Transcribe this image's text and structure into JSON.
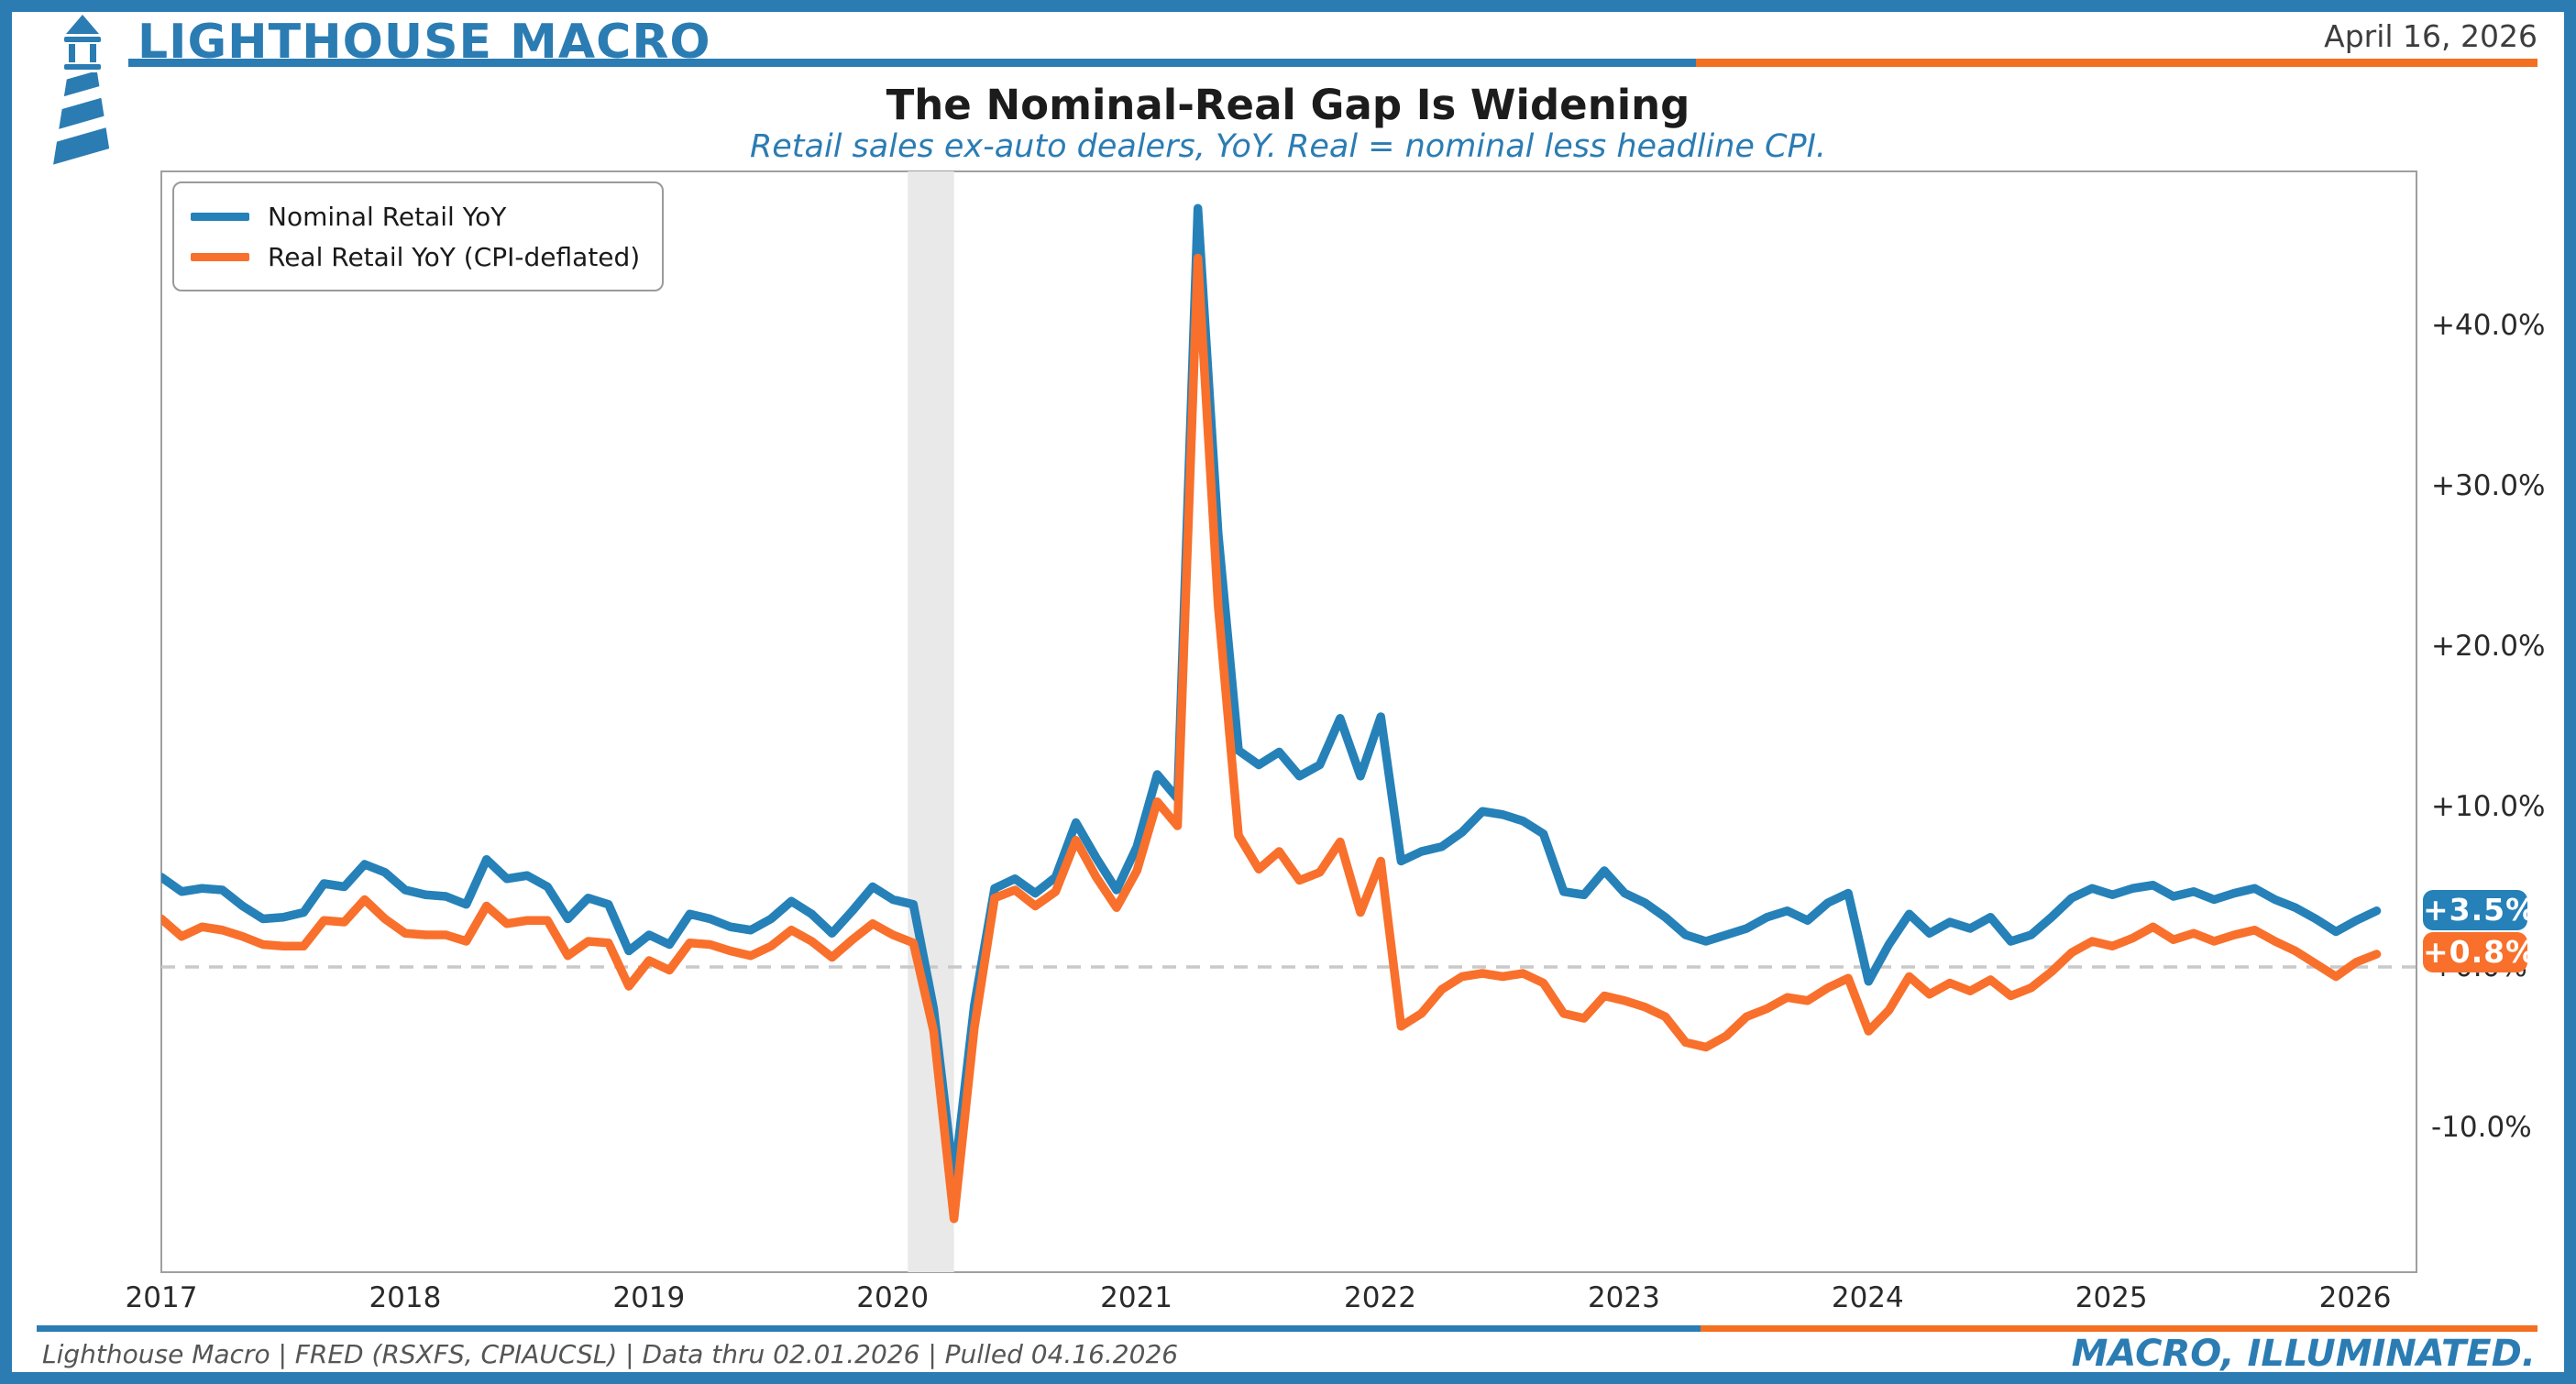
{
  "header": {
    "brand": "LIGHTHOUSE MACRO",
    "date": "April 16, 2026"
  },
  "title": "The Nominal-Real Gap Is Widening",
  "subtitle": "Retail sales ex-auto dealers, YoY. Real = nominal less headline CPI.",
  "legend": {
    "items": [
      {
        "label": "Nominal Retail YoY"
      },
      {
        "label": "Real Retail YoY (CPI-deflated)"
      }
    ]
  },
  "badges": {
    "nominal": "+3.5%",
    "real": "+0.8%"
  },
  "footer": {
    "source": "Lighthouse Macro | FRED (RSXFS, CPIAUCSL) | Data thru 02.01.2026 | Pulled 04.16.2026",
    "tagline": "MACRO, ILLUMINATED."
  },
  "colors": {
    "chart_blue": "#2581b8",
    "chart_orange": "#f8702b",
    "brand_blue": "#2b7cb3",
    "accent_orange": "#f36f21",
    "recession_band": "#e9e9e9",
    "zero_dash": "#c9c9c9"
  },
  "chart_data": {
    "type": "line",
    "title": "The Nominal-Real Gap Is Widening",
    "subtitle": "Retail sales ex-auto dealers, YoY. Real = nominal less headline CPI.",
    "frequency": "monthly",
    "x_start": "2017-01",
    "x_end": "2026-02",
    "x_tick_labels": [
      "2017",
      "2018",
      "2019",
      "2020",
      "2021",
      "2022",
      "2023",
      "2024",
      "2025",
      "2026"
    ],
    "y_tick_labels": [
      "+40.0%",
      "+30.0%",
      "+20.0%",
      "+10.0%",
      "+0.0%",
      "-10.0%"
    ],
    "y_tick_values": [
      40,
      30,
      20,
      10,
      0,
      -10
    ],
    "ylim": [
      -19.2,
      49.7
    ],
    "grid": false,
    "zero_line_dashed": true,
    "legend_position": "upper-left",
    "recession_band": {
      "from": "2020-02",
      "to": "2020-04"
    },
    "end_labels": {
      "nominal": "+3.5%",
      "real": "+0.8%"
    },
    "series": [
      {
        "name": "Nominal Retail YoY",
        "color": "#2581b8",
        "values": [
          5.6,
          4.7,
          4.9,
          4.8,
          3.8,
          3.0,
          3.1,
          3.4,
          5.2,
          5.0,
          6.4,
          5.9,
          4.8,
          4.5,
          4.4,
          3.9,
          6.7,
          5.5,
          5.7,
          5.0,
          3.0,
          4.3,
          3.9,
          1.0,
          2.0,
          1.4,
          3.3,
          3.0,
          2.5,
          2.3,
          3.0,
          4.1,
          3.3,
          2.1,
          3.5,
          5.0,
          4.2,
          3.9,
          -2.6,
          -13.3,
          -2.4,
          4.9,
          5.5,
          4.6,
          5.6,
          9.0,
          6.8,
          4.8,
          7.5,
          12.0,
          10.5,
          47.3,
          27.0,
          13.5,
          12.6,
          13.4,
          11.9,
          12.6,
          15.5,
          11.9,
          15.6,
          6.6,
          7.2,
          7.5,
          8.4,
          9.7,
          9.5,
          9.1,
          8.3,
          4.7,
          4.5,
          6.0,
          4.6,
          4.0,
          3.1,
          2.0,
          1.6,
          2.0,
          2.4,
          3.1,
          3.5,
          2.9,
          4.0,
          4.6,
          -0.9,
          1.4,
          3.3,
          2.1,
          2.8,
          2.4,
          3.1,
          1.6,
          2.0,
          3.1,
          4.3,
          4.9,
          4.5,
          4.9,
          5.1,
          4.4,
          4.7,
          4.2,
          4.6,
          4.9,
          4.2,
          3.7,
          3.0,
          2.2,
          2.9,
          3.5
        ]
      },
      {
        "name": "Real Retail YoY (CPI-deflated)",
        "color": "#f8702b",
        "values": [
          3.0,
          1.9,
          2.5,
          2.3,
          1.9,
          1.4,
          1.3,
          1.3,
          2.9,
          2.8,
          4.2,
          3.0,
          2.1,
          2.0,
          2.0,
          1.6,
          3.8,
          2.7,
          2.9,
          2.9,
          0.7,
          1.6,
          1.5,
          -1.2,
          0.4,
          -0.2,
          1.5,
          1.4,
          1.0,
          0.7,
          1.3,
          2.3,
          1.6,
          0.6,
          1.7,
          2.7,
          2.0,
          1.5,
          -4.0,
          -15.7,
          -3.8,
          4.3,
          4.8,
          3.8,
          4.7,
          7.9,
          5.6,
          3.7,
          6.0,
          10.3,
          8.8,
          44.2,
          22.5,
          8.2,
          6.1,
          7.2,
          5.4,
          5.9,
          7.8,
          3.4,
          6.6,
          -3.7,
          -2.9,
          -1.4,
          -0.6,
          -0.4,
          -0.6,
          -0.4,
          -1.0,
          -2.9,
          -3.2,
          -1.8,
          -2.1,
          -2.5,
          -3.1,
          -4.7,
          -5.0,
          -4.3,
          -3.1,
          -2.6,
          -1.9,
          -2.1,
          -1.3,
          -0.7,
          -4.0,
          -2.7,
          -0.6,
          -1.7,
          -1.0,
          -1.5,
          -0.8,
          -1.8,
          -1.3,
          -0.3,
          0.9,
          1.6,
          1.3,
          1.8,
          2.5,
          1.7,
          2.1,
          1.6,
          2.0,
          2.3,
          1.6,
          1.0,
          0.2,
          -0.6,
          0.3,
          0.8
        ]
      }
    ]
  }
}
